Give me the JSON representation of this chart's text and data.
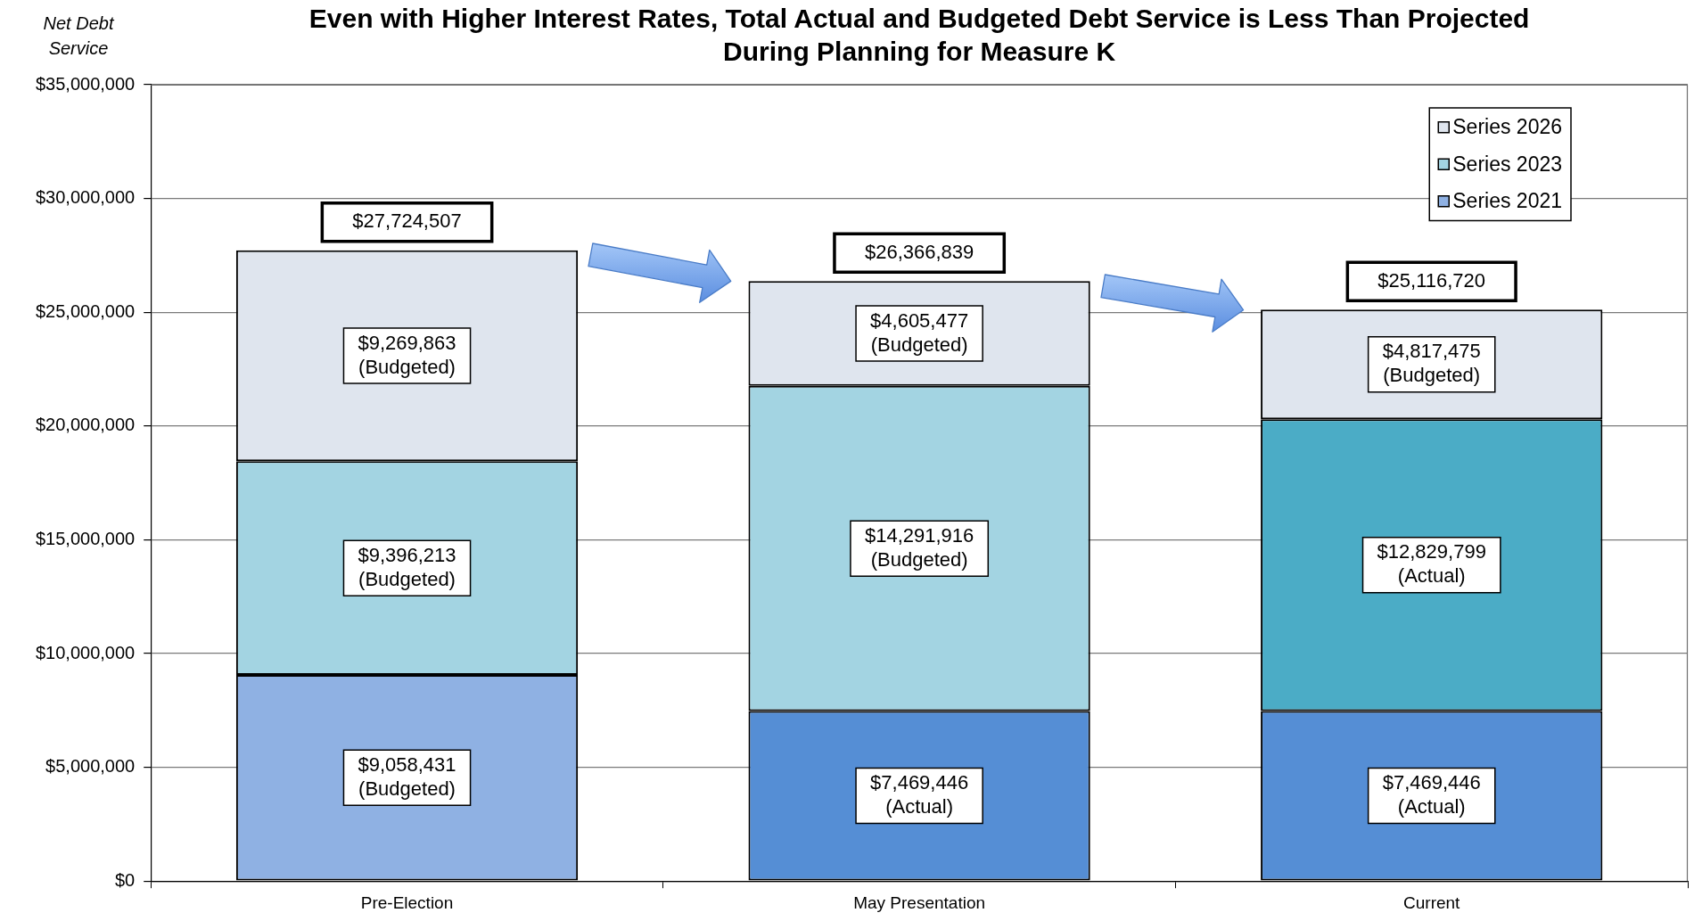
{
  "chart_data": {
    "type": "bar",
    "title": "Even with Higher Interest Rates, Total Actual and Budgeted Debt Service is Less Than Projected During Planning for Measure K",
    "ylabel": "Net Debt Service",
    "categories": [
      "Pre-Election",
      "May Presentation",
      "Current"
    ],
    "stacked": true,
    "series": [
      {
        "name": "Series 2021",
        "colors": [
          "#8fb1e3",
          "#558ed5",
          "#558ed5"
        ],
        "values": [
          9058431,
          7469446,
          7469446
        ],
        "value_labels": [
          "$9,058,431 (Budgeted)",
          "$7,469,446 (Actual)",
          "$7,469,446 (Actual)"
        ]
      },
      {
        "name": "Series 2023",
        "colors": [
          "#a3d4e2",
          "#a3d4e2",
          "#4bacc6"
        ],
        "values": [
          9396213,
          14291916,
          12829799
        ],
        "value_labels": [
          "$9,396,213 (Budgeted)",
          "$14,291,916 (Budgeted)",
          "$12,829,799 (Actual)"
        ]
      },
      {
        "name": "Series 2026",
        "colors": [
          "#dfe5ee",
          "#dfe5ee",
          "#dfe5ee"
        ],
        "values": [
          9269863,
          4605477,
          4817475
        ],
        "value_labels": [
          "$9,269,863 (Budgeted)",
          "$4,605,477 (Budgeted)",
          "$4,817,475 (Budgeted)"
        ]
      }
    ],
    "totals": [
      "$27,724,507",
      "$26,366,839",
      "$25,116,720"
    ],
    "ylim": [
      0,
      35000000
    ],
    "yticks": [
      {
        "value": 0,
        "label": "$0"
      },
      {
        "value": 5000000,
        "label": "$5,000,000"
      },
      {
        "value": 10000000,
        "label": "$10,000,000"
      },
      {
        "value": 15000000,
        "label": "$15,000,000"
      },
      {
        "value": 20000000,
        "label": "$20,000,000"
      },
      {
        "value": 25000000,
        "label": "$25,000,000"
      },
      {
        "value": 30000000,
        "label": "$30,000,000"
      },
      {
        "value": 35000000,
        "label": "$35,000,000"
      }
    ],
    "grid": "y",
    "legend": "top right"
  }
}
